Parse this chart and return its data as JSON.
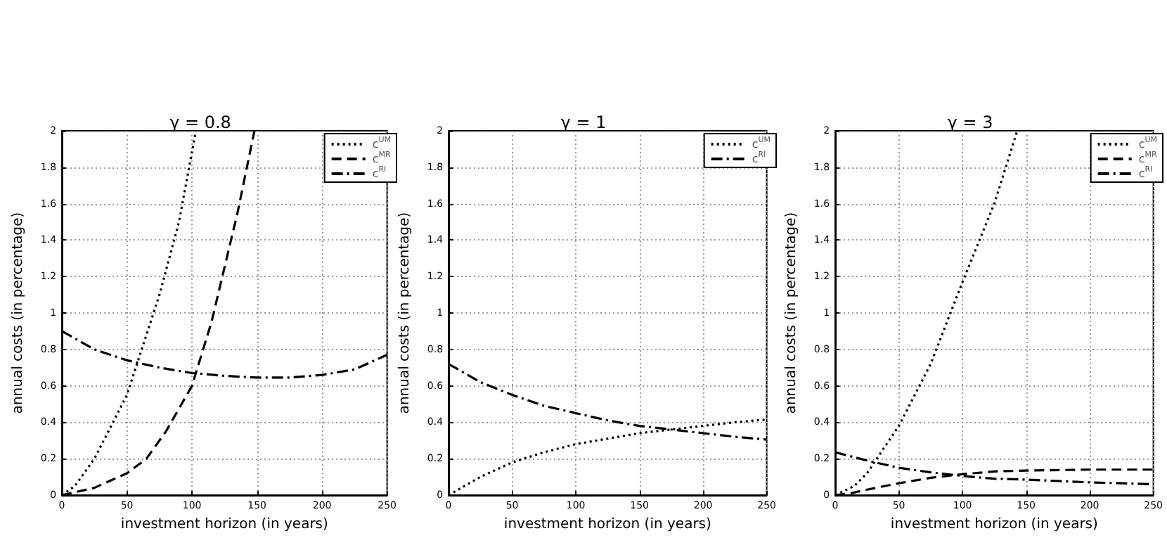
{
  "chart_data": [
    {
      "type": "line",
      "title": "γ = 0.8",
      "xlabel": "investment horizon (in years)",
      "ylabel": "annual costs (in percentage)",
      "xlim": [
        0,
        250
      ],
      "ylim": [
        0,
        2
      ],
      "xticks": [
        0,
        50,
        100,
        150,
        200,
        250
      ],
      "yticks": [
        0,
        0.2,
        0.4,
        0.6,
        0.8,
        1,
        1.2,
        1.4,
        1.6,
        1.8,
        2
      ],
      "grid": true,
      "legend": "top right",
      "marker": "none",
      "series": [
        {
          "name": "c$^{UM}$",
          "color": "#000000",
          "line_style": "dotted",
          "x": [
            0,
            10,
            25,
            50,
            75,
            90,
            103
          ],
          "values": [
            0,
            0.05,
            0.2,
            0.55,
            1.1,
            1.5,
            2.0
          ]
        },
        {
          "name": "c$^{MR}$",
          "color": "#000000",
          "line_style": "dashed",
          "x": [
            0,
            25,
            50,
            65,
            80,
            100,
            115,
            125,
            135,
            148
          ],
          "values": [
            0,
            0.04,
            0.12,
            0.2,
            0.35,
            0.6,
            0.95,
            1.25,
            1.55,
            2.0
          ]
        },
        {
          "name": "c$^{RI}$",
          "color": "#000000",
          "line_style": "dashdot",
          "x": [
            0,
            25,
            50,
            75,
            100,
            125,
            150,
            175,
            200,
            225,
            250
          ],
          "values": [
            0.9,
            0.8,
            0.74,
            0.7,
            0.67,
            0.655,
            0.645,
            0.645,
            0.66,
            0.69,
            0.77
          ]
        }
      ]
    },
    {
      "type": "line",
      "title": "γ = 1",
      "xlabel": "investment horizon (in years)",
      "ylabel": "annual costs (in percentage)",
      "xlim": [
        0,
        250
      ],
      "ylim": [
        0,
        2
      ],
      "xticks": [
        0,
        50,
        100,
        150,
        200,
        250
      ],
      "yticks": [
        0,
        0.2,
        0.4,
        0.6,
        0.8,
        1,
        1.2,
        1.4,
        1.6,
        1.8,
        2
      ],
      "grid": true,
      "legend": "top right",
      "marker": "none",
      "series": [
        {
          "name": "c$^{UM}$",
          "color": "#000000",
          "line_style": "dotted",
          "x": [
            0,
            25,
            50,
            75,
            100,
            125,
            150,
            175,
            200,
            225,
            250
          ],
          "values": [
            0,
            0.1,
            0.18,
            0.235,
            0.28,
            0.31,
            0.34,
            0.36,
            0.38,
            0.4,
            0.415
          ]
        },
        {
          "name": "c$^{RI}$",
          "color": "#000000",
          "line_style": "dashdot",
          "x": [
            0,
            25,
            50,
            75,
            100,
            125,
            150,
            175,
            200,
            225,
            250
          ],
          "values": [
            0.72,
            0.62,
            0.55,
            0.49,
            0.45,
            0.41,
            0.38,
            0.36,
            0.34,
            0.32,
            0.305
          ]
        }
      ]
    },
    {
      "type": "line",
      "title": "γ = 3",
      "xlabel": "investment horizon (in years)",
      "ylabel": "annual costs (in percentage)",
      "xlim": [
        0,
        250
      ],
      "ylim": [
        0,
        2
      ],
      "xticks": [
        0,
        50,
        100,
        150,
        200,
        250
      ],
      "yticks": [
        0,
        0.2,
        0.4,
        0.6,
        0.8,
        1,
        1.2,
        1.4,
        1.6,
        1.8,
        2
      ],
      "grid": true,
      "legend": "top right",
      "marker": "none",
      "series": [
        {
          "name": "c$^{UM}$",
          "color": "#000000",
          "line_style": "dotted",
          "x": [
            0,
            15,
            25,
            50,
            75,
            100,
            125,
            143
          ],
          "values": [
            0,
            0.05,
            0.12,
            0.38,
            0.72,
            1.17,
            1.6,
            2.0
          ]
        },
        {
          "name": "c$^{MR}$",
          "color": "#000000",
          "line_style": "dashed",
          "x": [
            0,
            12,
            25,
            50,
            75,
            100,
            125,
            150,
            200,
            250
          ],
          "values": [
            0,
            0.01,
            0.03,
            0.065,
            0.095,
            0.115,
            0.13,
            0.135,
            0.14,
            0.14
          ]
        },
        {
          "name": "c$^{RI}$",
          "color": "#000000",
          "line_style": "dashdot",
          "x": [
            0,
            25,
            50,
            75,
            100,
            125,
            150,
            200,
            250
          ],
          "values": [
            0.235,
            0.19,
            0.15,
            0.125,
            0.105,
            0.09,
            0.085,
            0.07,
            0.06
          ]
        }
      ]
    }
  ]
}
